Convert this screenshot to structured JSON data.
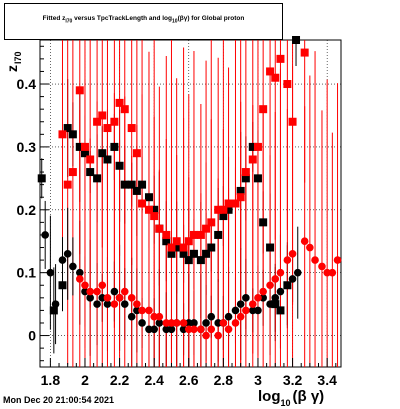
{
  "chart_data": {
    "type": "scatter",
    "title_parts": [
      "Fitted  z",
      "I70",
      "  versus TpcTrackLength and log",
      "10",
      "(βγ) for Global proton"
    ],
    "ylabel_parts": [
      "z",
      "I70"
    ],
    "xlabel_parts": [
      "log",
      "10",
      "(β γ)"
    ],
    "xlim": [
      1.74,
      3.48
    ],
    "ylim": [
      -0.05,
      0.47
    ],
    "xticks": [
      1.8,
      2.0,
      2.2,
      2.4,
      2.6,
      2.8,
      3.0,
      3.2,
      3.4
    ],
    "xtick_labels": [
      "1.8",
      "2",
      "2.2",
      "2.4",
      "2.6",
      "2.8",
      "3",
      "3.2",
      "3.4"
    ],
    "yticks": [
      0,
      0.1,
      0.2,
      0.3,
      0.4
    ],
    "ytick_labels": [
      "0",
      "0.1",
      "0.2",
      "0.3",
      "0.4"
    ],
    "grid": true,
    "series": [
      {
        "color": "#000000",
        "marker": "square",
        "points": [
          [
            1.75,
            0.25
          ],
          [
            1.82,
            0.04
          ],
          [
            1.87,
            0.08
          ],
          [
            1.9,
            0.33
          ],
          [
            1.93,
            0.32
          ],
          [
            1.97,
            0.3
          ],
          [
            2.0,
            0.29
          ],
          [
            2.03,
            0.26
          ],
          [
            2.07,
            0.25
          ],
          [
            2.1,
            0.29
          ],
          [
            2.13,
            0.28
          ],
          [
            2.17,
            0.3
          ],
          [
            2.2,
            0.27
          ],
          [
            2.23,
            0.24
          ],
          [
            2.27,
            0.24
          ],
          [
            2.3,
            0.23
          ],
          [
            2.33,
            0.24
          ],
          [
            2.37,
            0.22
          ],
          [
            2.4,
            0.2
          ],
          [
            2.43,
            0.17
          ],
          [
            2.47,
            0.15
          ],
          [
            2.5,
            0.13
          ],
          [
            2.53,
            0.14
          ],
          [
            2.57,
            0.13
          ],
          [
            2.6,
            0.12
          ],
          [
            2.63,
            0.13
          ],
          [
            2.67,
            0.12
          ],
          [
            2.7,
            0.13
          ],
          [
            2.73,
            0.14
          ],
          [
            2.77,
            0.16
          ],
          [
            2.8,
            0.19
          ],
          [
            2.83,
            0.2
          ],
          [
            2.87,
            0.21
          ],
          [
            2.9,
            0.23
          ],
          [
            2.93,
            0.25
          ],
          [
            2.97,
            0.3
          ],
          [
            3.0,
            0.25
          ],
          [
            3.03,
            0.18
          ],
          [
            3.07,
            0.14
          ],
          [
            3.1,
            0.05
          ],
          [
            3.13,
            0.04
          ],
          [
            3.17,
            0.08
          ],
          [
            3.22,
            0.47
          ]
        ]
      },
      {
        "color": "#ff0000",
        "marker": "square",
        "points": [
          [
            1.87,
            0.32
          ],
          [
            1.9,
            0.24
          ],
          [
            1.93,
            0.26
          ],
          [
            1.97,
            0.39
          ],
          [
            2.0,
            0.3
          ],
          [
            2.03,
            0.28
          ],
          [
            2.07,
            0.34
          ],
          [
            2.1,
            0.35
          ],
          [
            2.13,
            0.33
          ],
          [
            2.17,
            0.34
          ],
          [
            2.2,
            0.37
          ],
          [
            2.23,
            0.36
          ],
          [
            2.27,
            0.33
          ],
          [
            2.3,
            0.29
          ],
          [
            2.33,
            0.21
          ],
          [
            2.37,
            0.2
          ],
          [
            2.4,
            0.19
          ],
          [
            2.43,
            0.17
          ],
          [
            2.47,
            0.16
          ],
          [
            2.5,
            0.14
          ],
          [
            2.53,
            0.15
          ],
          [
            2.57,
            0.14
          ],
          [
            2.6,
            0.15
          ],
          [
            2.63,
            0.16
          ],
          [
            2.67,
            0.16
          ],
          [
            2.7,
            0.17
          ],
          [
            2.73,
            0.18
          ],
          [
            2.77,
            0.2
          ],
          [
            2.8,
            0.2
          ],
          [
            2.83,
            0.21
          ],
          [
            2.87,
            0.21
          ],
          [
            2.9,
            0.22
          ],
          [
            2.93,
            0.26
          ],
          [
            2.97,
            0.28
          ],
          [
            3.0,
            0.3
          ],
          [
            3.03,
            0.36
          ],
          [
            3.07,
            0.42
          ],
          [
            3.1,
            0.41
          ],
          [
            3.13,
            0.44
          ],
          [
            3.17,
            0.4
          ],
          [
            3.2,
            0.34
          ],
          [
            3.27,
            0.45
          ]
        ]
      },
      {
        "color": "#000000",
        "marker": "circle",
        "points": [
          [
            1.77,
            0.16
          ],
          [
            1.8,
            0.1
          ],
          [
            1.83,
            0.05
          ],
          [
            1.87,
            0.12
          ],
          [
            1.9,
            0.13
          ],
          [
            1.93,
            0.11
          ],
          [
            1.97,
            0.1
          ],
          [
            2.0,
            0.07
          ],
          [
            2.03,
            0.06
          ],
          [
            2.07,
            0.05
          ],
          [
            2.1,
            0.06
          ],
          [
            2.13,
            0.05
          ],
          [
            2.17,
            0.07
          ],
          [
            2.2,
            0.06
          ],
          [
            2.23,
            0.05
          ],
          [
            2.27,
            0.03
          ],
          [
            2.3,
            0.04
          ],
          [
            2.33,
            0.02
          ],
          [
            2.37,
            0.01
          ],
          [
            2.4,
            0.01
          ],
          [
            2.43,
            0.02
          ],
          [
            2.47,
            0.01
          ],
          [
            2.5,
            0.01
          ],
          [
            2.53,
            0.02
          ],
          [
            2.57,
            0.01
          ],
          [
            2.6,
            0.02
          ],
          [
            2.63,
            0.02
          ],
          [
            2.67,
            0.01
          ],
          [
            2.7,
            0.02
          ],
          [
            2.73,
            0.03
          ],
          [
            2.77,
            0.02
          ],
          [
            2.8,
            0.02
          ],
          [
            2.83,
            0.03
          ],
          [
            2.87,
            0.04
          ],
          [
            2.9,
            0.05
          ],
          [
            2.93,
            0.06
          ],
          [
            2.97,
            0.04
          ],
          [
            3.0,
            0.04
          ],
          [
            3.03,
            0.06
          ],
          [
            3.07,
            0.05
          ],
          [
            3.1,
            0.06
          ],
          [
            3.13,
            0.07
          ],
          [
            3.17,
            0.08
          ],
          [
            3.2,
            0.09
          ],
          [
            3.23,
            0.1
          ]
        ]
      },
      {
        "color": "#ff0000",
        "marker": "circle",
        "points": [
          [
            1.97,
            0.09
          ],
          [
            2.0,
            0.08
          ],
          [
            2.03,
            0.07
          ],
          [
            2.07,
            0.07
          ],
          [
            2.1,
            0.08
          ],
          [
            2.13,
            0.06
          ],
          [
            2.17,
            0.05
          ],
          [
            2.2,
            0.06
          ],
          [
            2.23,
            0.07
          ],
          [
            2.27,
            0.06
          ],
          [
            2.3,
            0.05
          ],
          [
            2.33,
            0.04
          ],
          [
            2.37,
            0.04
          ],
          [
            2.4,
            0.03
          ],
          [
            2.43,
            0.03
          ],
          [
            2.47,
            0.02
          ],
          [
            2.5,
            0.02
          ],
          [
            2.53,
            0.02
          ],
          [
            2.57,
            0.02
          ],
          [
            2.6,
            0.01
          ],
          [
            2.63,
            0.01
          ],
          [
            2.67,
            0.01
          ],
          [
            2.7,
            0.0
          ],
          [
            2.73,
            0.01
          ],
          [
            2.77,
            0.0
          ],
          [
            2.8,
            0.02
          ],
          [
            2.83,
            0.01
          ],
          [
            2.87,
            0.02
          ],
          [
            2.9,
            0.03
          ],
          [
            2.93,
            0.04
          ],
          [
            2.97,
            0.05
          ],
          [
            3.0,
            0.06
          ],
          [
            3.03,
            0.07
          ],
          [
            3.07,
            0.08
          ],
          [
            3.1,
            0.09
          ],
          [
            3.13,
            0.1
          ],
          [
            3.17,
            0.12
          ],
          [
            3.2,
            0.13
          ],
          [
            3.27,
            0.15
          ],
          [
            3.3,
            0.14
          ],
          [
            3.33,
            0.12
          ],
          [
            3.37,
            0.11
          ],
          [
            3.4,
            0.1
          ],
          [
            3.43,
            0.1
          ],
          [
            3.46,
            0.12
          ]
        ]
      }
    ]
  },
  "footer": {
    "date": "Mon Dec 20 21:00:54 2021"
  }
}
